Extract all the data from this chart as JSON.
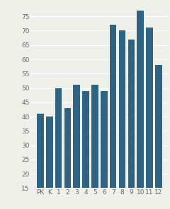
{
  "categories": [
    "PK",
    "K",
    "1",
    "2",
    "3",
    "4",
    "5",
    "6",
    "7",
    "8",
    "9",
    "10",
    "11",
    "12"
  ],
  "values": [
    41,
    40,
    50,
    43,
    51,
    49,
    51,
    49,
    72,
    70,
    67,
    77,
    71,
    58
  ],
  "bar_color": "#2e6481",
  "ylim": [
    15,
    80
  ],
  "yticks": [
    15,
    20,
    25,
    30,
    35,
    40,
    45,
    50,
    55,
    60,
    65,
    70,
    75
  ],
  "background_color": "#f0f0eb",
  "tick_fontsize": 6.5,
  "bar_width": 0.75
}
